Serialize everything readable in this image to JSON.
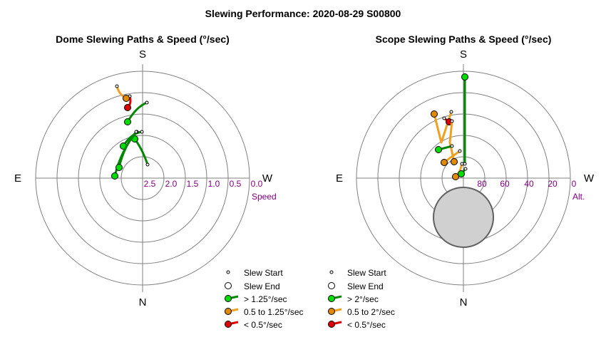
{
  "title": "Slewing Performance: 2020-08-29 S00800",
  "colors": {
    "fast": "#00dd00",
    "fast_line": "#008800",
    "mid": "#f0a020",
    "mid_dot": "#e08a00",
    "slow": "#dd0000",
    "ring": "#808080",
    "tick": "#800080",
    "moon_fill": "#d0d0d0"
  },
  "chart_data": [
    {
      "type": "scatter",
      "name": "dome",
      "title": "Dome Slewing Paths & Speed (°/sec)",
      "cardinals": {
        "top": "S",
        "bottom": "N",
        "left": "E",
        "right": "W"
      },
      "radial_axis": {
        "label": "Speed",
        "ticks": [
          "2.5",
          "2.0",
          "1.5",
          "1.0",
          "0.5",
          "0.0"
        ],
        "range": [
          3.0,
          0.0
        ]
      },
      "legend": [
        "Slew Start",
        "Slew End",
        "> 1.25°/sec",
        "0.5 to 1.25°/sec",
        "< 0.5°/sec"
      ],
      "paths": [
        {
          "speed_class": "slow",
          "start": [
            -18,
            135
          ],
          "end": [
            -21,
            151
          ],
          "curve": [
            -15,
            145
          ]
        },
        {
          "speed_class": "mid",
          "start": [
            -36,
            121
          ],
          "end": [
            -23,
            138
          ],
          "curve": [
            -33,
            133
          ]
        },
        {
          "speed_class": "fast",
          "start": [
            6,
            144
          ],
          "end": [
            -21,
            171
          ],
          "curve": [
            -9,
            150
          ]
        },
        {
          "speed_class": "fast",
          "start": [
            -1,
            185
          ],
          "end": [
            -27,
            205
          ],
          "curve": [
            -16,
            187
          ]
        },
        {
          "speed_class": "fast",
          "start": [
            7,
            231
          ],
          "end": [
            -11,
            195
          ],
          "curve": [
            0,
            210
          ]
        },
        {
          "speed_class": "fast",
          "start": [
            -8,
            185
          ],
          "end": [
            -39,
            247
          ],
          "curve": [
            -30,
            210
          ]
        },
        {
          "speed_class": "fast",
          "start": [
            -9,
            185
          ],
          "end": [
            -33,
            235
          ],
          "curve": [
            -26,
            205
          ]
        }
      ]
    },
    {
      "type": "scatter",
      "name": "scope",
      "title": "Scope Slewing Paths & Speed (°/sec)",
      "cardinals": {
        "top": "S",
        "bottom": "N",
        "left": "E",
        "right": "W"
      },
      "radial_axis": {
        "label": "Alt.",
        "ticks": [
          "80",
          "60",
          "40",
          "20",
          "0"
        ],
        "range": [
          90,
          0
        ]
      },
      "legend": [
        "Slew Start",
        "Slew End",
        "> 2°/sec",
        "0.5 to 2°/sec",
        "< 0.5°/sec"
      ],
      "paths": [
        {
          "speed_class": "fast",
          "start": [
            2,
            230
          ],
          "end": [
            2,
            108
          ]
        },
        {
          "speed_class": "mid",
          "start": [
            -17,
            157
          ],
          "end": [
            -41,
            160
          ],
          "via": [
            -31,
            200
          ]
        },
        {
          "speed_class": "slow",
          "start": [
            -27,
            166
          ],
          "end": [
            -20,
            171
          ]
        },
        {
          "speed_class": "mid",
          "start": [
            -16,
            170
          ],
          "end": [
            -13,
            227
          ],
          "via": [
            -19,
            200
          ]
        },
        {
          "speed_class": "fast",
          "start": [
            -16,
            205
          ],
          "end": [
            -35,
            210
          ]
        },
        {
          "speed_class": "mid",
          "start": [
            -5,
            212
          ],
          "end": [
            -27,
            228
          ],
          "via": [
            -18,
            221
          ]
        },
        {
          "speed_class": "mid",
          "start": [
            -2,
            230
          ],
          "end": [
            -11,
            248
          ],
          "via": [
            -5,
            240
          ]
        },
        {
          "speed_class": "fast",
          "start": [
            3,
            237
          ],
          "end": [
            -3,
            244
          ]
        }
      ],
      "moon": {
        "center": [
          0,
          305
        ],
        "radius": 42
      }
    }
  ]
}
